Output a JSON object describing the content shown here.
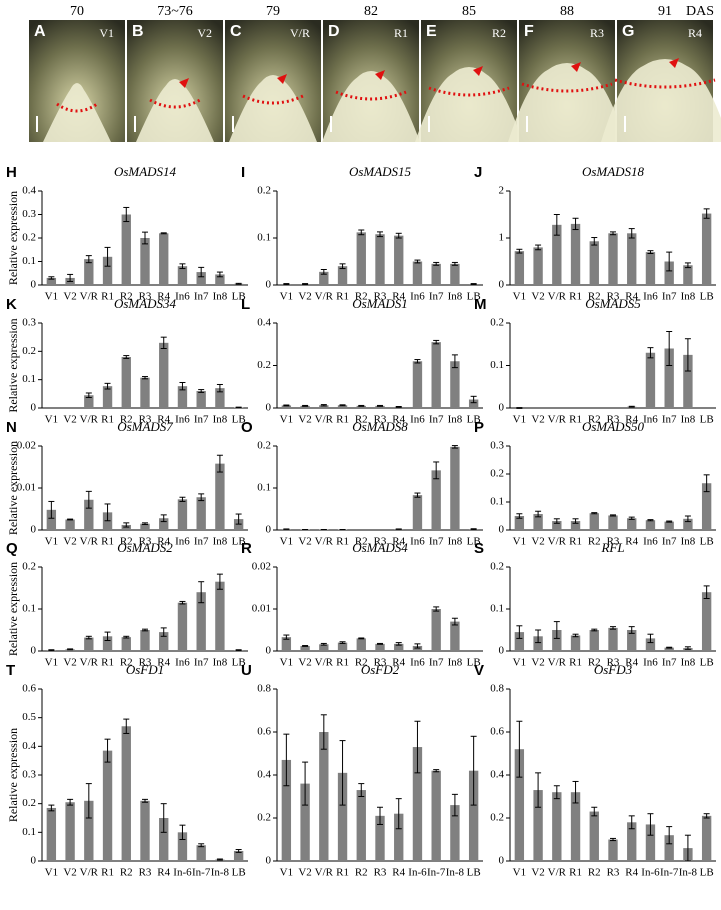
{
  "photos": {
    "days": [
      "70",
      "73~76",
      "79",
      "82",
      "85",
      "88",
      "91"
    ],
    "unit": "DAS",
    "panels": [
      {
        "letter": "A",
        "stage": "V1"
      },
      {
        "letter": "B",
        "stage": "V2"
      },
      {
        "letter": "C",
        "stage": "V/R"
      },
      {
        "letter": "D",
        "stage": "R1"
      },
      {
        "letter": "E",
        "stage": "R2"
      },
      {
        "letter": "F",
        "stage": "R3"
      },
      {
        "letter": "G",
        "stage": "R4"
      }
    ]
  },
  "chart_data": [
    {
      "type": "bar",
      "letter": "H",
      "title": "OsMADS14",
      "ylabel": "Relative expression",
      "color": "#808080",
      "categories": [
        "V1",
        "V2",
        "V/R",
        "R1",
        "R2",
        "R3",
        "R4",
        "In6",
        "In7",
        "In8",
        "LB"
      ],
      "values": [
        0.03,
        0.03,
        0.11,
        0.12,
        0.3,
        0.2,
        0.22,
        0.08,
        0.055,
        0.045,
        0.005
      ],
      "errors": [
        0.005,
        0.015,
        0.015,
        0.04,
        0.03,
        0.025,
        0.002,
        0.01,
        0.02,
        0.01,
        0.002
      ],
      "ylim": [
        0,
        0.4
      ],
      "yticks": [
        0,
        0.1,
        0.2,
        0.3,
        0.4
      ]
    },
    {
      "type": "bar",
      "letter": "I",
      "title": "OsMADS15",
      "color": "#808080",
      "categories": [
        "V1",
        "V2",
        "V/R",
        "R1",
        "R2",
        "R3",
        "R4",
        "In6",
        "In7",
        "In8",
        "LB"
      ],
      "values": [
        0.002,
        0.002,
        0.028,
        0.04,
        0.112,
        0.108,
        0.105,
        0.05,
        0.045,
        0.045,
        0.002
      ],
      "errors": [
        0.001,
        0.001,
        0.005,
        0.005,
        0.005,
        0.005,
        0.005,
        0.003,
        0.003,
        0.003,
        0.001
      ],
      "ylim": [
        0,
        0.2
      ],
      "yticks": [
        0,
        0.1,
        0.2
      ]
    },
    {
      "type": "bar",
      "letter": "J",
      "title": "OsMADS18",
      "color": "#808080",
      "categories": [
        "V1",
        "V2",
        "V/R",
        "R1",
        "R2",
        "R3",
        "R4",
        "In6",
        "In7",
        "In8",
        "LB"
      ],
      "values": [
        0.72,
        0.8,
        1.28,
        1.3,
        0.93,
        1.1,
        1.1,
        0.7,
        0.5,
        0.42,
        1.52
      ],
      "errors": [
        0.04,
        0.05,
        0.22,
        0.12,
        0.08,
        0.03,
        0.1,
        0.03,
        0.2,
        0.05,
        0.1
      ],
      "ylim": [
        0,
        2
      ],
      "yticks": [
        0,
        1,
        2
      ]
    },
    {
      "type": "bar",
      "letter": "K",
      "title": "OsMADS34",
      "ylabel": "Relative expression",
      "color": "#808080",
      "categories": [
        "V1",
        "V2",
        "V/R",
        "R1",
        "R2",
        "R3",
        "R4",
        "In6",
        "In7",
        "In8",
        "LB"
      ],
      "values": [
        0,
        0,
        0.045,
        0.077,
        0.18,
        0.107,
        0.23,
        0.077,
        0.06,
        0.07,
        0.002
      ],
      "errors": [
        0,
        0,
        0.008,
        0.01,
        0.005,
        0.004,
        0.02,
        0.013,
        0.005,
        0.013,
        0.001
      ],
      "ylim": [
        0,
        0.3
      ],
      "yticks": [
        0,
        0.1,
        0.2,
        0.3
      ]
    },
    {
      "type": "bar",
      "letter": "L",
      "title": "OsMADS1",
      "color": "#808080",
      "categories": [
        "V1",
        "V2",
        "V/R",
        "R1",
        "R2",
        "R3",
        "R4",
        "In6",
        "In7",
        "In8",
        "LB"
      ],
      "values": [
        0.012,
        0.01,
        0.013,
        0.013,
        0.01,
        0.01,
        0.005,
        0.22,
        0.31,
        0.22,
        0.04
      ],
      "errors": [
        0.002,
        0.002,
        0.003,
        0.002,
        0.002,
        0.002,
        0.002,
        0.008,
        0.008,
        0.03,
        0.015
      ],
      "ylim": [
        0,
        0.4
      ],
      "yticks": [
        0,
        0.2,
        0.4
      ]
    },
    {
      "type": "bar",
      "letter": "M",
      "title": "OsMADS5",
      "color": "#808080",
      "categories": [
        "V1",
        "V2",
        "V/R",
        "R1",
        "R2",
        "R3",
        "R4",
        "In6",
        "In7",
        "In8",
        "LB"
      ],
      "values": [
        0,
        0,
        0,
        0,
        0,
        0,
        0.003,
        0.13,
        0.14,
        0.125,
        0
      ],
      "errors": [
        0.001,
        0,
        0,
        0,
        0,
        0,
        0.001,
        0.012,
        0.04,
        0.038,
        0
      ],
      "ylim": [
        0,
        0.2
      ],
      "yticks": [
        0,
        0.1,
        0.2
      ]
    },
    {
      "type": "bar",
      "letter": "N",
      "title": "OsMADS7",
      "ylabel": "Relative expression",
      "color": "#808080",
      "categories": [
        "V1",
        "V2",
        "V/R",
        "R1",
        "R2",
        "R3",
        "R4",
        "In6",
        "In7",
        "In8",
        "LB"
      ],
      "values": [
        0.0048,
        0.0025,
        0.0072,
        0.0042,
        0.0012,
        0.0015,
        0.0028,
        0.0073,
        0.0078,
        0.0158,
        0.0026
      ],
      "errors": [
        0.002,
        0.0001,
        0.002,
        0.002,
        0.0005,
        0.0002,
        0.0008,
        0.0005,
        0.0008,
        0.002,
        0.0012
      ],
      "ylim": [
        0,
        0.02
      ],
      "yticks": [
        0,
        0.01,
        0.02
      ]
    },
    {
      "type": "bar",
      "letter": "O",
      "title": "OsMADS8",
      "color": "#808080",
      "categories": [
        "V1",
        "V2",
        "V/R",
        "R1",
        "R2",
        "R3",
        "R4",
        "In6",
        "In7",
        "In8",
        "LB"
      ],
      "values": [
        0.002,
        0.001,
        0.001,
        0.001,
        0,
        0,
        0.002,
        0.083,
        0.142,
        0.198,
        0.002
      ],
      "errors": [
        0.0005,
        0,
        0,
        0,
        0,
        0,
        0.0005,
        0.005,
        0.02,
        0.003,
        0.001
      ],
      "ylim": [
        0,
        0.2
      ],
      "yticks": [
        0,
        0.1,
        0.2
      ]
    },
    {
      "type": "bar",
      "letter": "P",
      "title": "OsMADS50",
      "color": "#808080",
      "categories": [
        "V1",
        "V2",
        "V/R",
        "R1",
        "R2",
        "R3",
        "R4",
        "In6",
        "In7",
        "In8",
        "LB"
      ],
      "values": [
        0.05,
        0.057,
        0.032,
        0.032,
        0.06,
        0.052,
        0.042,
        0.035,
        0.03,
        0.04,
        0.167
      ],
      "errors": [
        0.008,
        0.01,
        0.008,
        0.008,
        0.002,
        0.002,
        0.004,
        0.002,
        0.002,
        0.01,
        0.03
      ],
      "ylim": [
        0,
        0.3
      ],
      "yticks": [
        0,
        0.1,
        0.2,
        0.3
      ]
    },
    {
      "type": "bar",
      "letter": "Q",
      "title": "OsMADS2",
      "ylabel": "Relative expression",
      "color": "#808080",
      "categories": [
        "V1",
        "V2",
        "V/R",
        "R1",
        "R2",
        "R3",
        "R4",
        "In6",
        "In7",
        "In8",
        "LB"
      ],
      "values": [
        0.002,
        0.004,
        0.032,
        0.035,
        0.033,
        0.05,
        0.045,
        0.115,
        0.14,
        0.165,
        0.002
      ],
      "errors": [
        0.001,
        0.001,
        0.003,
        0.01,
        0.002,
        0.002,
        0.01,
        0.003,
        0.025,
        0.018,
        0.001
      ],
      "ylim": [
        0,
        0.2
      ],
      "yticks": [
        0,
        0.1,
        0.2
      ]
    },
    {
      "type": "bar",
      "letter": "R",
      "title": "OsMADS4",
      "color": "#808080",
      "categories": [
        "V1",
        "V2",
        "V/R",
        "R1",
        "R2",
        "R3",
        "R4",
        "In6",
        "In7",
        "In8",
        "LB"
      ],
      "values": [
        0.0033,
        0.0012,
        0.0016,
        0.002,
        0.003,
        0.0017,
        0.0017,
        0.0012,
        0.01,
        0.007,
        0
      ],
      "errors": [
        0.0005,
        0.0001,
        0.0002,
        0.0002,
        0.0001,
        0.0001,
        0.0003,
        0.0005,
        0.0005,
        0.0008,
        0
      ],
      "ylim": [
        0,
        0.02
      ],
      "yticks": [
        0,
        0.01,
        0.02
      ]
    },
    {
      "type": "bar",
      "letter": "S",
      "title": "RFL",
      "color": "#808080",
      "categories": [
        "V1",
        "V2",
        "V/R",
        "R1",
        "R2",
        "R3",
        "R4",
        "In6",
        "In7",
        "In8",
        "LB"
      ],
      "values": [
        0.045,
        0.035,
        0.05,
        0.037,
        0.05,
        0.055,
        0.05,
        0.03,
        0.008,
        0.007,
        0.14
      ],
      "errors": [
        0.015,
        0.015,
        0.02,
        0.003,
        0.002,
        0.003,
        0.008,
        0.01,
        0.001,
        0.003,
        0.015
      ],
      "ylim": [
        0,
        0.2
      ],
      "yticks": [
        0,
        0.1,
        0.2
      ]
    },
    {
      "type": "bar",
      "letter": "T",
      "title": "OsFD1",
      "ylabel": "Relative expression",
      "color": "#808080",
      "categories": [
        "V1",
        "V2",
        "V/R",
        "R1",
        "R2",
        "R3",
        "R4",
        "In-6",
        "In-7",
        "In-8",
        "LB"
      ],
      "values": [
        0.185,
        0.205,
        0.21,
        0.385,
        0.47,
        0.21,
        0.15,
        0.1,
        0.055,
        0.005,
        0.035
      ],
      "errors": [
        0.01,
        0.01,
        0.06,
        0.04,
        0.025,
        0.005,
        0.05,
        0.025,
        0.005,
        0.002,
        0.005
      ],
      "ylim": [
        0,
        0.6
      ],
      "yticks": [
        0,
        0.1,
        0.2,
        0.3,
        0.4,
        0.5,
        0.6
      ]
    },
    {
      "type": "bar",
      "letter": "U",
      "title": "OsFD2",
      "color": "#808080",
      "categories": [
        "V1",
        "V2",
        "V/R",
        "R1",
        "R2",
        "R3",
        "R4",
        "In-6",
        "In-7",
        "In-8",
        "LB"
      ],
      "values": [
        0.47,
        0.36,
        0.6,
        0.41,
        0.33,
        0.21,
        0.22,
        0.53,
        0.42,
        0.26,
        0.42
      ],
      "errors": [
        0.12,
        0.1,
        0.08,
        0.15,
        0.03,
        0.04,
        0.07,
        0.12,
        0.005,
        0.05,
        0.16
      ],
      "ylim": [
        0,
        0.8
      ],
      "yticks": [
        0,
        0.2,
        0.4,
        0.6,
        0.8
      ]
    },
    {
      "type": "bar",
      "letter": "V",
      "title": "OsFD3",
      "color": "#808080",
      "categories": [
        "V1",
        "V2",
        "V/R",
        "R1",
        "R2",
        "R3",
        "R4",
        "In-6",
        "In-7",
        "In-8",
        "LB"
      ],
      "values": [
        0.52,
        0.33,
        0.32,
        0.32,
        0.23,
        0.1,
        0.18,
        0.17,
        0.12,
        0.06,
        0.21
      ],
      "errors": [
        0.13,
        0.08,
        0.03,
        0.05,
        0.02,
        0.005,
        0.03,
        0.05,
        0.04,
        0.06,
        0.01
      ],
      "ylim": [
        0,
        0.8
      ],
      "yticks": [
        0,
        0.2,
        0.4,
        0.6,
        0.8
      ]
    }
  ]
}
